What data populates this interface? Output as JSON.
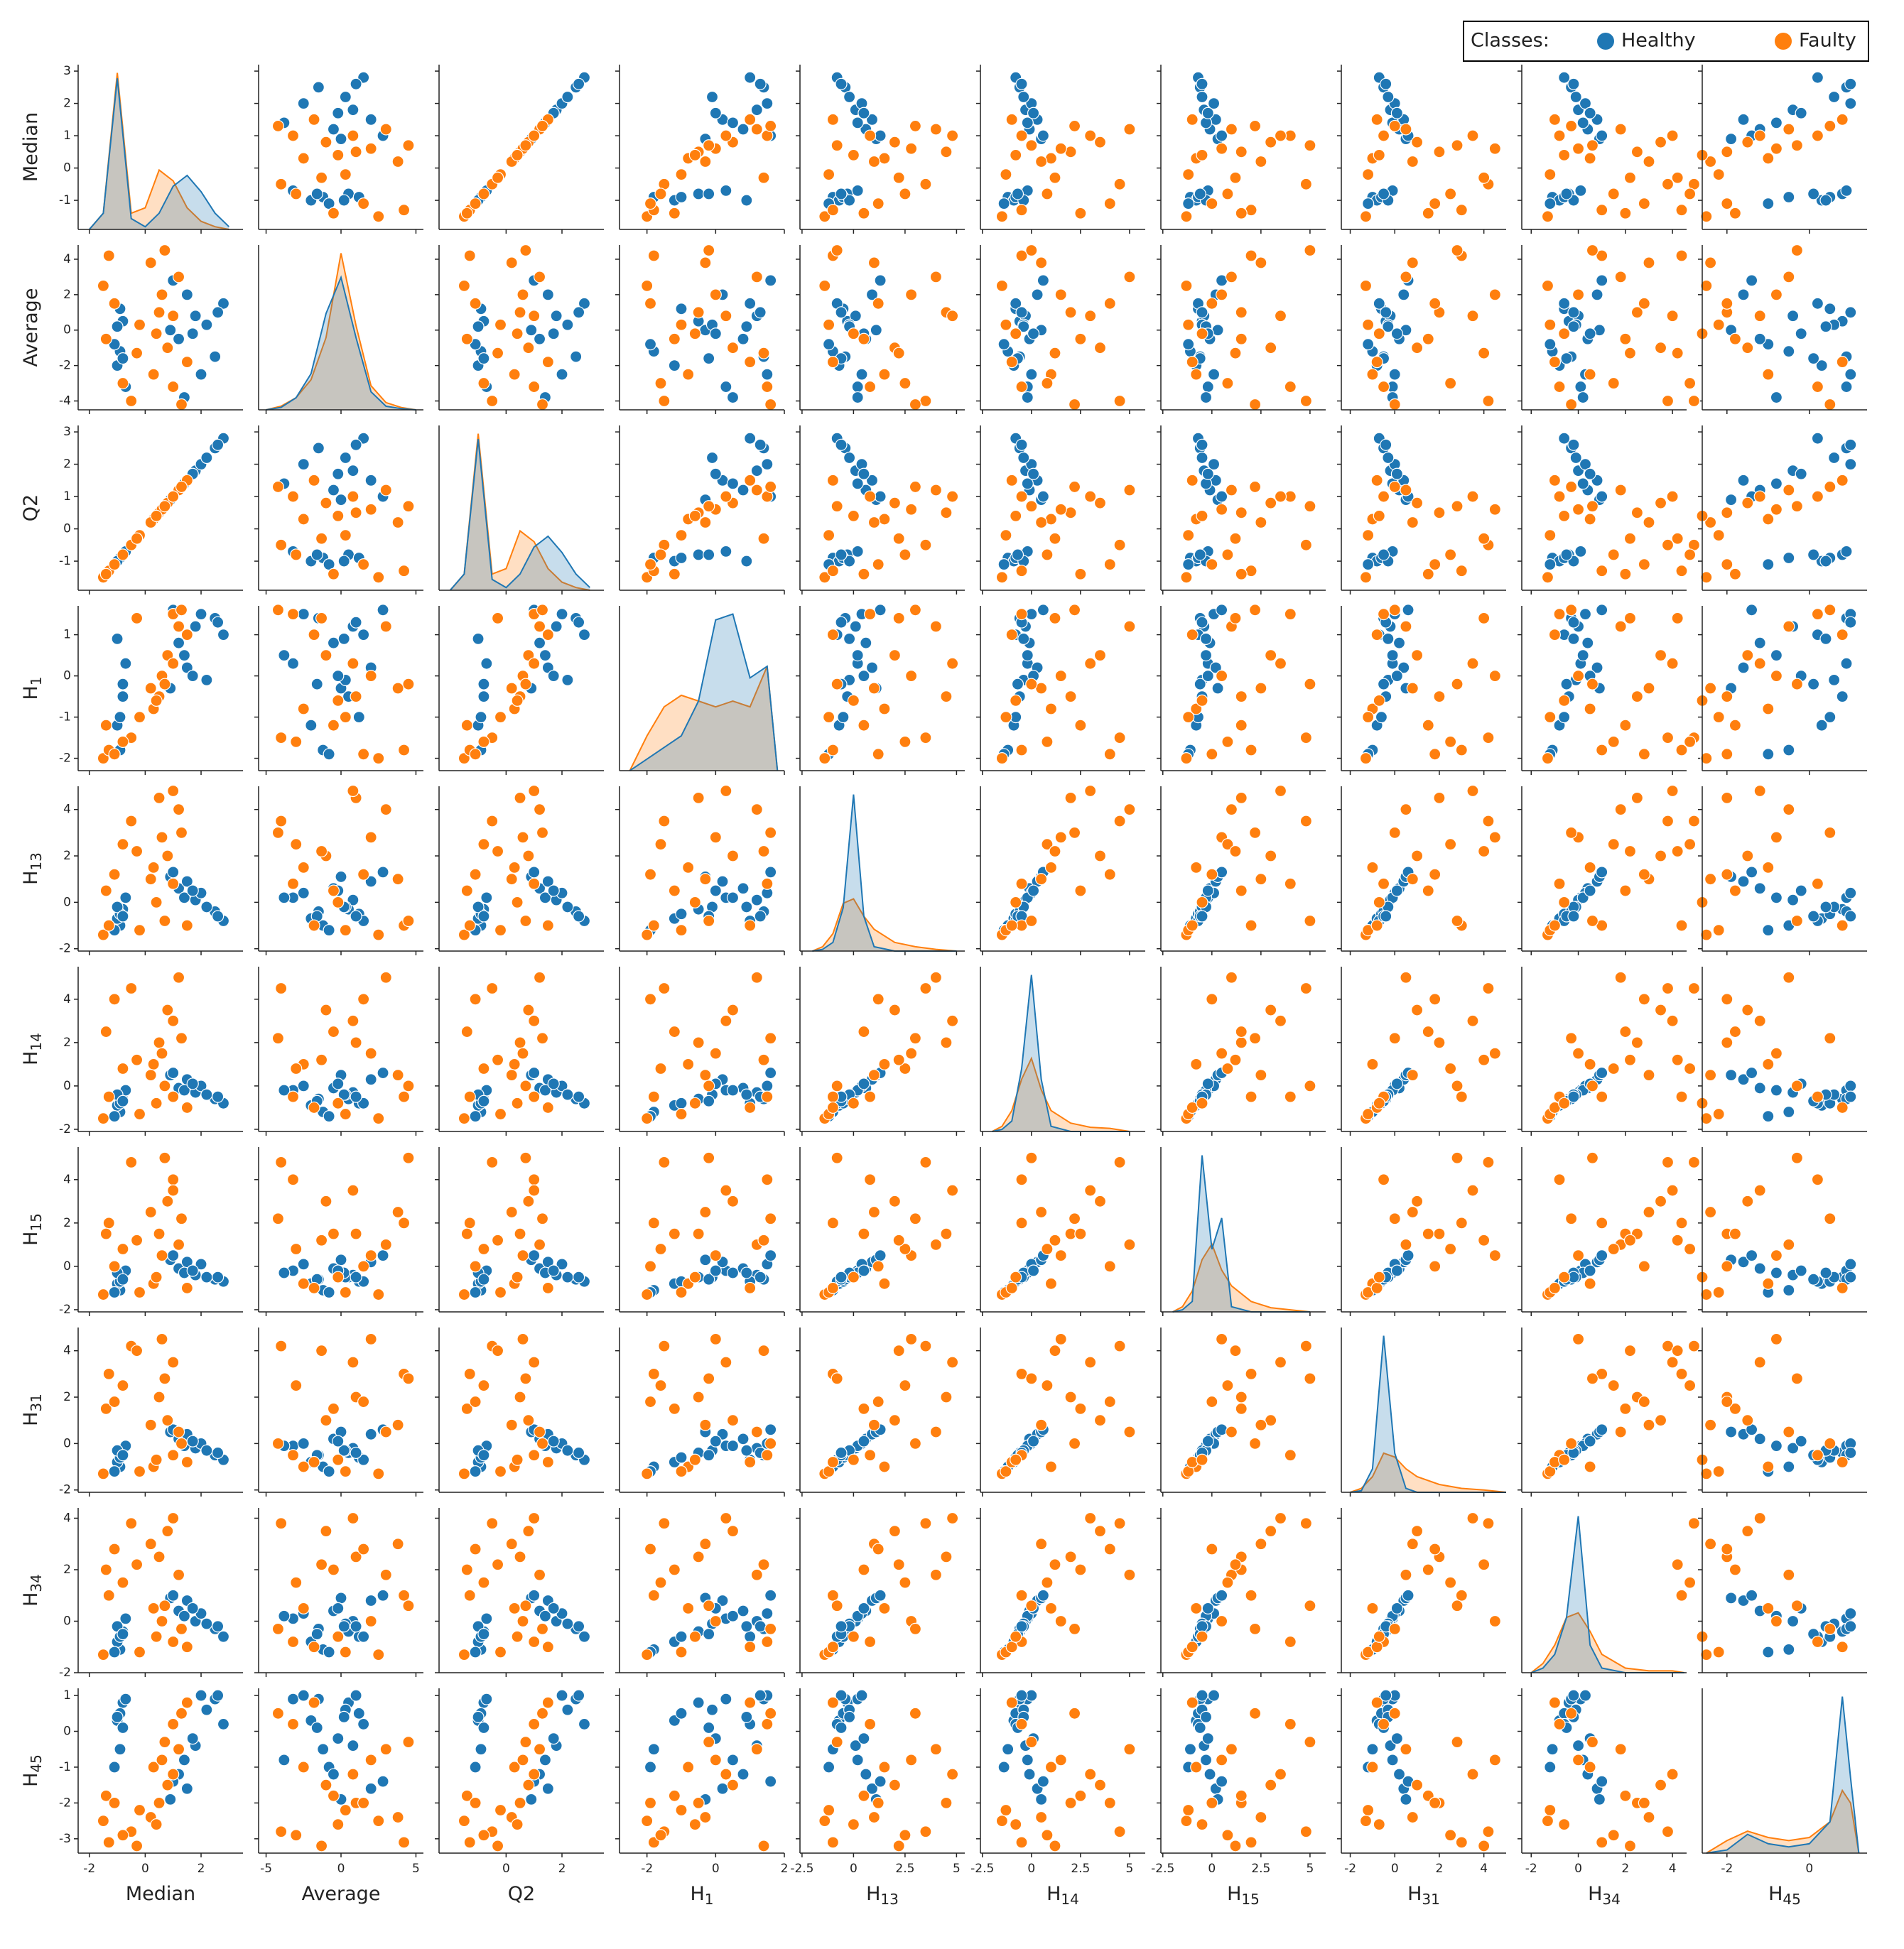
{
  "chart_data": {
    "type": "pairplot",
    "legend": {
      "title": "Classes:",
      "position": "upper right"
    },
    "series": [
      {
        "name": "Healthy",
        "color": "#1f77b4",
        "rows": [
          [
            -0.9,
            -1.2,
            -0.9,
            -1.8,
            -1.0,
            -1.2,
            -1.1,
            -1.0,
            -1.1,
            -0.5
          ],
          [
            -1.0,
            -2.0,
            -1.0,
            -1.2,
            -0.7,
            -0.9,
            -0.8,
            -0.8,
            -0.8,
            0.3
          ],
          [
            -0.8,
            0.5,
            -0.8,
            -0.5,
            -0.3,
            -0.6,
            -0.5,
            -0.4,
            -0.4,
            0.8
          ],
          [
            -1.1,
            -0.8,
            -1.1,
            -1.9,
            -1.2,
            -1.4,
            -1.2,
            -1.2,
            -1.2,
            -1.0
          ],
          [
            -0.7,
            -3.2,
            -0.7,
            0.3,
            0.2,
            -0.2,
            -0.2,
            -0.1,
            0.1,
            0.9
          ],
          [
            -0.9,
            1.2,
            -0.9,
            -1.0,
            -0.5,
            -0.8,
            -0.7,
            -0.6,
            -0.6,
            0.5
          ],
          [
            1.2,
            -0.5,
            1.2,
            0.8,
            0.6,
            -0.1,
            -0.1,
            0.2,
            0.4,
            -1.2
          ],
          [
            1.8,
            0.8,
            1.8,
            1.2,
            0.1,
            -0.3,
            -0.4,
            -0.2,
            0.0,
            -0.4
          ],
          [
            2.5,
            -1.5,
            2.5,
            1.4,
            -0.4,
            -0.6,
            -0.6,
            -0.5,
            -0.3,
            0.9
          ],
          [
            1.5,
            2.0,
            1.5,
            0.2,
            0.9,
            0.3,
            0.2,
            0.4,
            0.8,
            -1.6
          ],
          [
            2.0,
            -2.5,
            2.0,
            1.5,
            0.4,
            0.0,
            0.1,
            0.0,
            0.3,
            1.0
          ],
          [
            0.9,
            0.0,
            0.9,
            -0.3,
            1.1,
            0.5,
            0.3,
            0.5,
            0.9,
            -1.9
          ],
          [
            2.8,
            1.5,
            2.8,
            1.0,
            -0.8,
            -0.8,
            -0.7,
            -0.7,
            -0.6,
            0.2
          ],
          [
            1.4,
            -3.8,
            1.4,
            0.5,
            0.2,
            -0.2,
            -0.3,
            -0.1,
            0.2,
            -0.8
          ],
          [
            2.2,
            0.3,
            2.2,
            -0.1,
            -0.2,
            -0.4,
            -0.5,
            -0.3,
            -0.1,
            0.6
          ],
          [
            1.0,
            2.8,
            1.0,
            1.6,
            1.3,
            0.6,
            0.5,
            0.6,
            1.0,
            -1.4
          ],
          [
            -1.0,
            0.2,
            -1.0,
            0.9,
            -0.2,
            -0.4,
            -0.3,
            -0.3,
            -0.2,
            0.4
          ],
          [
            -0.8,
            -1.6,
            -0.8,
            -0.2,
            -0.6,
            -0.7,
            -0.6,
            -0.5,
            -0.5,
            0.1
          ],
          [
            1.7,
            -0.2,
            1.7,
            0.0,
            0.5,
            0.1,
            -0.2,
            0.1,
            0.5,
            -0.2
          ],
          [
            2.6,
            1.0,
            2.6,
            1.3,
            -0.6,
            -0.5,
            -0.5,
            -0.4,
            -0.2,
            1.0
          ]
        ]
      },
      {
        "name": "Faulty",
        "color": "#ff7f0e",
        "rows": [
          [
            -1.5,
            2.5,
            -1.5,
            -2.0,
            -1.4,
            -1.5,
            -1.3,
            -1.3,
            -1.3,
            -2.5
          ],
          [
            -0.5,
            -4.0,
            -0.5,
            -1.5,
            3.5,
            4.5,
            4.8,
            4.2,
            3.8,
            -2.8
          ],
          [
            0.5,
            1.0,
            0.5,
            -0.5,
            4.5,
            2.0,
            1.5,
            2.0,
            2.5,
            -2.0
          ],
          [
            0.8,
            -1.0,
            0.8,
            0.5,
            2.0,
            3.5,
            3.0,
            1.0,
            3.5,
            -1.5
          ],
          [
            -1.3,
            4.2,
            -1.3,
            -1.8,
            -1.0,
            -0.5,
            2.0,
            3.0,
            1.0,
            -3.1
          ],
          [
            0.3,
            -2.5,
            0.3,
            -0.8,
            1.5,
            1.0,
            -0.8,
            -1.0,
            0.5,
            -1.0
          ],
          [
            1.2,
            3.0,
            1.2,
            1.2,
            4.0,
            5.0,
            1.0,
            0.5,
            1.8,
            -0.5
          ],
          [
            -0.2,
            0.3,
            -0.2,
            -1.0,
            -1.2,
            -1.3,
            -1.2,
            -1.2,
            -1.2,
            -2.2
          ],
          [
            1.0,
            -3.2,
            1.0,
            1.5,
            0.8,
            -0.5,
            4.0,
            -0.5,
            -0.8,
            0.2
          ],
          [
            0.6,
            2.0,
            0.6,
            0.0,
            2.8,
            1.5,
            0.5,
            4.5,
            0.0,
            -0.8
          ],
          [
            -1.4,
            -0.5,
            -1.4,
            -1.2,
            0.5,
            2.5,
            1.5,
            1.5,
            2.0,
            -1.8
          ],
          [
            1.5,
            -1.8,
            1.5,
            1.0,
            -1.0,
            -1.0,
            -1.0,
            -0.8,
            -1.0,
            0.8
          ],
          [
            0.2,
            3.8,
            0.2,
            -0.3,
            1.0,
            0.5,
            2.5,
            0.8,
            3.0,
            -2.4
          ],
          [
            -0.8,
            -3.0,
            -0.8,
            -1.6,
            2.5,
            0.8,
            0.8,
            2.5,
            1.5,
            -2.9
          ],
          [
            1.0,
            0.8,
            1.0,
            0.3,
            4.8,
            3.0,
            3.5,
            3.5,
            4.0,
            -1.2
          ],
          [
            0.4,
            -0.2,
            0.4,
            -0.6,
            0.0,
            -0.8,
            -0.5,
            -0.7,
            -0.6,
            -2.6
          ],
          [
            -1.1,
            1.5,
            -1.1,
            -1.9,
            1.2,
            4.0,
            0.0,
            1.8,
            2.8,
            -2.0
          ],
          [
            1.3,
            -4.2,
            1.3,
            1.6,
            3.0,
            2.2,
            2.2,
            0.0,
            -0.3,
            0.5
          ],
          [
            0.7,
            4.5,
            0.7,
            -0.2,
            -0.8,
            0.0,
            5.0,
            2.8,
            0.6,
            -0.3
          ],
          [
            -0.3,
            -1.3,
            -0.3,
            1.4,
            2.2,
            1.2,
            1.2,
            4.0,
            2.2,
            -3.2
          ]
        ]
      }
    ],
    "variables": [
      {
        "label": "Median",
        "xlim": [
          -2.4,
          3.5
        ],
        "xticks": [
          -2,
          0,
          2
        ],
        "ylim": [
          -1.9,
          3.2
        ],
        "yticks": [
          -1,
          0,
          1,
          2,
          3
        ],
        "kde_x": [
          -2,
          -1.5,
          -1,
          -0.5,
          0,
          0.5,
          1,
          1.5,
          2,
          2.5,
          3
        ],
        "kde": [
          [
            0,
            0.3,
            2.8,
            0.2,
            0.05,
            0.3,
            0.8,
            1.0,
            0.7,
            0.3,
            0.05
          ],
          [
            0,
            0.3,
            2.9,
            0.3,
            0.4,
            1.1,
            0.9,
            0.4,
            0.15,
            0.05,
            0
          ]
        ]
      },
      {
        "label": "Average",
        "xlim": [
          -5.5,
          5.5
        ],
        "xticks": [
          -5,
          0,
          5
        ],
        "ylim": [
          -4.5,
          4.8
        ],
        "yticks": [
          -4,
          -2,
          0,
          2,
          4
        ],
        "kde_x": [
          -5,
          -4,
          -3,
          -2,
          -1,
          0,
          1,
          2,
          3,
          4,
          5
        ],
        "kde": [
          [
            0,
            0.02,
            0.1,
            0.3,
            0.8,
            1.1,
            0.6,
            0.15,
            0.03,
            0.01,
            0
          ],
          [
            0,
            0.03,
            0.1,
            0.25,
            0.6,
            1.3,
            0.7,
            0.2,
            0.06,
            0.02,
            0
          ]
        ]
      },
      {
        "label": "Q2",
        "xlim": [
          -2.4,
          3.5
        ],
        "xticks": [
          0,
          2
        ],
        "ylim": [
          -1.9,
          3.2
        ],
        "yticks": [
          -1,
          0,
          1,
          2,
          3
        ],
        "kde_x": [
          -2,
          -1.5,
          -1,
          -0.5,
          0,
          0.5,
          1,
          1.5,
          2,
          2.5,
          3
        ],
        "kde": [
          [
            0,
            0.3,
            2.8,
            0.2,
            0.05,
            0.3,
            0.8,
            1.0,
            0.7,
            0.3,
            0.05
          ],
          [
            0,
            0.3,
            2.9,
            0.3,
            0.4,
            1.1,
            0.9,
            0.4,
            0.15,
            0.05,
            0
          ]
        ]
      },
      {
        "label": "H",
        "subscript": "1",
        "xlim": [
          -2.8,
          2.0
        ],
        "xticks": [
          -2,
          0,
          2
        ],
        "ylim": [
          -2.3,
          1.7
        ],
        "yticks": [
          -2,
          -1,
          0,
          1
        ],
        "kde_x": [
          -2.5,
          -2,
          -1.5,
          -1,
          -0.5,
          0,
          0.5,
          1,
          1.5,
          1.8
        ],
        "kde": [
          [
            0,
            0.1,
            0.2,
            0.3,
            0.6,
            1.3,
            1.35,
            0.8,
            0.9,
            0
          ],
          [
            0,
            0.3,
            0.55,
            0.65,
            0.6,
            0.55,
            0.6,
            0.55,
            0.9,
            0
          ]
        ]
      },
      {
        "label": "H",
        "subscript": "13",
        "xlim": [
          -2.6,
          5.4
        ],
        "xticks": [
          -2.5,
          0,
          2.5,
          5
        ],
        "ylim": [
          -2.1,
          5.0
        ],
        "yticks": [
          -2,
          0,
          2,
          4
        ],
        "kde_x": [
          -2,
          -1.5,
          -1,
          -0.5,
          0,
          0.5,
          1,
          2,
          3,
          4,
          5
        ],
        "kde": [
          [
            0,
            0.02,
            0.1,
            0.5,
            1.8,
            0.4,
            0.05,
            0,
            0,
            0,
            0
          ],
          [
            0,
            0.05,
            0.2,
            0.55,
            0.6,
            0.4,
            0.25,
            0.1,
            0.05,
            0.02,
            0
          ]
        ]
      },
      {
        "label": "H",
        "subscript": "14",
        "xlim": [
          -2.6,
          5.8
        ],
        "xticks": [
          -2.5,
          0,
          2.5,
          5
        ],
        "ylim": [
          -2.1,
          5.5
        ],
        "yticks": [
          -2,
          0,
          2,
          4
        ],
        "kde_x": [
          -2,
          -1.5,
          -1,
          -0.5,
          0,
          0.5,
          1,
          2,
          3,
          4,
          5
        ],
        "kde": [
          [
            0,
            0.02,
            0.1,
            0.6,
            1.5,
            0.5,
            0.05,
            0,
            0,
            0,
            0
          ],
          [
            0,
            0.05,
            0.2,
            0.5,
            0.7,
            0.4,
            0.2,
            0.08,
            0.04,
            0.03,
            0
          ]
        ]
      },
      {
        "label": "H",
        "subscript": "15",
        "xlim": [
          -2.6,
          5.8
        ],
        "xticks": [
          -2.5,
          0,
          2.5,
          5
        ],
        "ylim": [
          -2.1,
          5.5
        ],
        "yticks": [
          -2,
          0,
          2,
          4
        ],
        "kde_x": [
          -2,
          -1.5,
          -1,
          -0.5,
          0,
          0.5,
          1,
          2,
          3,
          4,
          5
        ],
        "kde": [
          [
            0,
            0.02,
            0.1,
            1.5,
            0.6,
            0.9,
            0.05,
            0,
            0,
            0,
            0
          ],
          [
            0,
            0.05,
            0.2,
            0.5,
            0.65,
            0.4,
            0.25,
            0.1,
            0.04,
            0.02,
            0
          ]
        ]
      },
      {
        "label": "H",
        "subscript": "31",
        "xlim": [
          -2.4,
          5.0
        ],
        "xticks": [
          -2,
          0,
          2,
          4
        ],
        "ylim": [
          -2.1,
          5.0
        ],
        "yticks": [
          -2,
          0,
          2,
          4
        ],
        "kde_x": [
          -2,
          -1.5,
          -1,
          -0.5,
          0,
          0.5,
          1,
          2,
          3,
          4,
          5
        ],
        "kde": [
          [
            0,
            0.02,
            0.3,
            2.0,
            0.5,
            0.05,
            0,
            0,
            0,
            0,
            0
          ],
          [
            0,
            0.05,
            0.2,
            0.5,
            0.45,
            0.3,
            0.2,
            0.1,
            0.05,
            0.03,
            0
          ]
        ]
      },
      {
        "label": "H",
        "subscript": "34",
        "xlim": [
          -2.4,
          4.6
        ],
        "xticks": [
          -2,
          0,
          2,
          4
        ],
        "ylim": [
          -2.0,
          4.4
        ],
        "yticks": [
          -2,
          0,
          2,
          4
        ],
        "kde_x": [
          -2,
          -1.5,
          -1,
          -0.5,
          0,
          0.5,
          1,
          2,
          3,
          4,
          4.5
        ],
        "kde": [
          [
            0,
            0.05,
            0.2,
            0.6,
            1.7,
            0.3,
            0.05,
            0,
            0,
            0,
            0
          ],
          [
            0,
            0.1,
            0.3,
            0.6,
            0.65,
            0.45,
            0.2,
            0.05,
            0.02,
            0.02,
            0
          ]
        ]
      },
      {
        "label": "H",
        "subscript": "45",
        "xlim": [
          -2.6,
          1.4
        ],
        "xticks": [
          -2,
          0
        ],
        "ylim": [
          -3.4,
          1.2
        ],
        "yticks": [
          -3,
          -2,
          -1,
          0,
          1
        ],
        "kde_x": [
          -2.5,
          -2,
          -1.5,
          -1,
          -0.5,
          0,
          0.5,
          0.8,
          1,
          1.2
        ],
        "kde": [
          [
            0,
            0.05,
            0.3,
            0.15,
            0.1,
            0.15,
            0.5,
            2.5,
            1.2,
            0
          ],
          [
            0,
            0.2,
            0.35,
            0.25,
            0.2,
            0.25,
            0.5,
            1.0,
            0.8,
            0
          ]
        ]
      }
    ]
  }
}
